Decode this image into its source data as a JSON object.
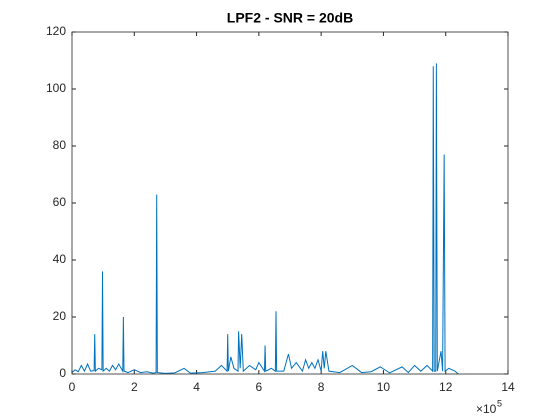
{
  "chart_data": {
    "type": "line",
    "title": "LPF2 - SNR = 20dB",
    "x_multiplier": "×10",
    "x_multiplier_exponent": "5",
    "xlim": [
      0,
      14
    ],
    "xticks": [
      0,
      2,
      4,
      6,
      8,
      10,
      12,
      14
    ],
    "ylim": [
      0,
      120
    ],
    "yticks": [
      0,
      20,
      40,
      60,
      80,
      100,
      120
    ],
    "series": [
      {
        "color": "#0072bd",
        "x": [
          0,
          0.1,
          0.2,
          0.3,
          0.4,
          0.5,
          0.6,
          0.71,
          0.73,
          0.75,
          0.85,
          0.96,
          0.98,
          1.0,
          1.1,
          1.2,
          1.3,
          1.4,
          1.5,
          1.63,
          1.65,
          1.67,
          1.8,
          2.0,
          2.2,
          2.4,
          2.6,
          2.7,
          2.72,
          2.74,
          3.0,
          3.3,
          3.6,
          3.8,
          4.2,
          4.6,
          4.8,
          4.98,
          5.0,
          5.02,
          5.1,
          5.2,
          5.33,
          5.35,
          5.4,
          5.45,
          5.5,
          5.7,
          5.9,
          6.0,
          6.18,
          6.2,
          6.22,
          6.4,
          6.53,
          6.55,
          6.57,
          6.8,
          6.95,
          7.05,
          7.2,
          7.4,
          7.5,
          7.6,
          7.7,
          7.8,
          7.9,
          8.0,
          8.05,
          8.1,
          8.15,
          8.25,
          8.6,
          9.0,
          9.3,
          9.6,
          9.9,
          10.2,
          10.6,
          10.8,
          11.0,
          11.2,
          11.4,
          11.58,
          11.6,
          11.63,
          11.68,
          11.7,
          11.73,
          11.85,
          11.9,
          11.95,
          11.98,
          12.1,
          12.3,
          12.4
        ],
        "values": [
          0.5,
          1.5,
          0.8,
          3,
          1,
          3.5,
          1,
          1.2,
          14,
          1,
          2,
          1.5,
          36,
          1,
          2,
          1,
          3,
          1.5,
          3.5,
          1,
          20,
          1,
          0.5,
          1.5,
          0.5,
          0.8,
          0.3,
          0.5,
          63,
          0.5,
          0.2,
          0.4,
          2,
          0.3,
          0.5,
          1,
          3,
          1,
          14,
          1,
          6,
          2,
          1,
          15,
          2,
          14,
          1,
          3,
          1.5,
          4,
          1,
          10,
          1,
          2,
          1,
          22,
          1,
          1,
          7,
          2,
          4,
          1,
          5,
          2,
          4,
          2,
          5,
          1,
          8,
          2,
          8,
          1,
          0.5,
          3,
          0.5,
          0.8,
          2.5,
          0.4,
          2.5,
          0.5,
          3,
          1,
          3,
          1,
          108,
          1,
          1,
          109,
          1,
          8,
          1,
          77,
          1,
          2,
          1,
          0
        ]
      }
    ]
  }
}
